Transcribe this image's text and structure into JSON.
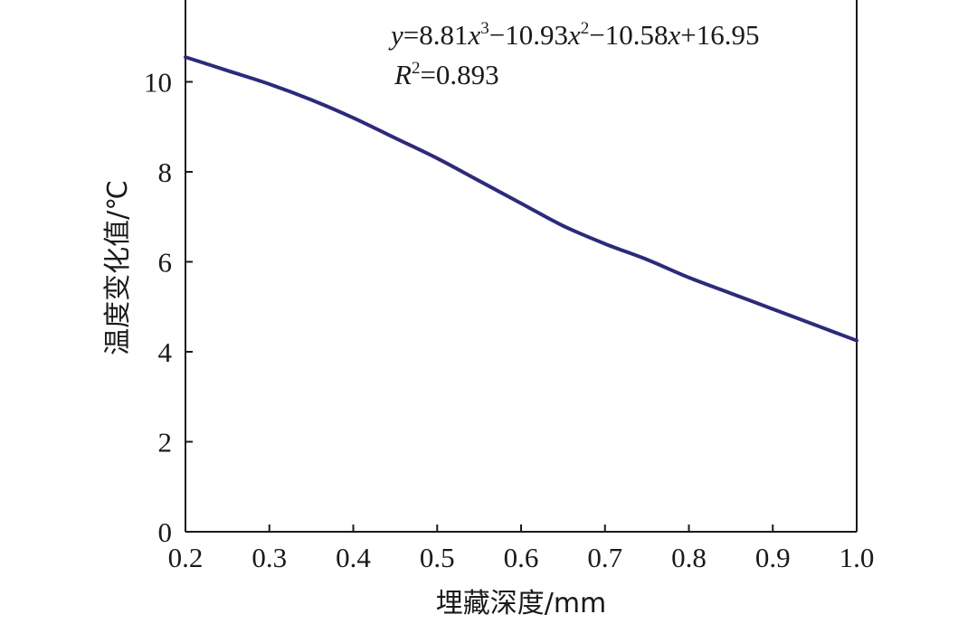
{
  "chart_data": {
    "type": "line",
    "x_label": "埋藏深度/mm",
    "y_label": "温度变化值/℃",
    "xlim": [
      0.2,
      1.0
    ],
    "ylim": [
      0,
      12
    ],
    "x_ticks": [
      "0.2",
      "0.3",
      "0.4",
      "0.5",
      "0.6",
      "0.7",
      "0.8",
      "0.9",
      "1.0"
    ],
    "y_ticks": [
      "0",
      "2",
      "4",
      "6",
      "8",
      "10"
    ],
    "grid": false,
    "line_color": "#2e2a7a",
    "series": [
      {
        "x": [
          0.2,
          0.25,
          0.3,
          0.35,
          0.4,
          0.45,
          0.5,
          0.55,
          0.6,
          0.65,
          0.7,
          0.75,
          0.8,
          0.85,
          0.9,
          0.95,
          1.0
        ],
        "y": [
          10.55,
          10.25,
          9.95,
          9.6,
          9.2,
          8.75,
          8.3,
          7.8,
          7.3,
          6.8,
          6.4,
          6.05,
          5.65,
          5.3,
          4.95,
          4.6,
          4.25
        ]
      }
    ],
    "annotation": {
      "equation": {
        "y": "y",
        "eq1": "=8.81",
        "x1": "x",
        "p1": "3",
        "eq2": "−10.93",
        "x2": "x",
        "p2": "2",
        "eq3": "−10.58",
        "x3": "x",
        "eq4": "+16.95"
      },
      "r2": {
        "r": "R",
        "p": "2",
        "val": "=0.893"
      }
    }
  }
}
